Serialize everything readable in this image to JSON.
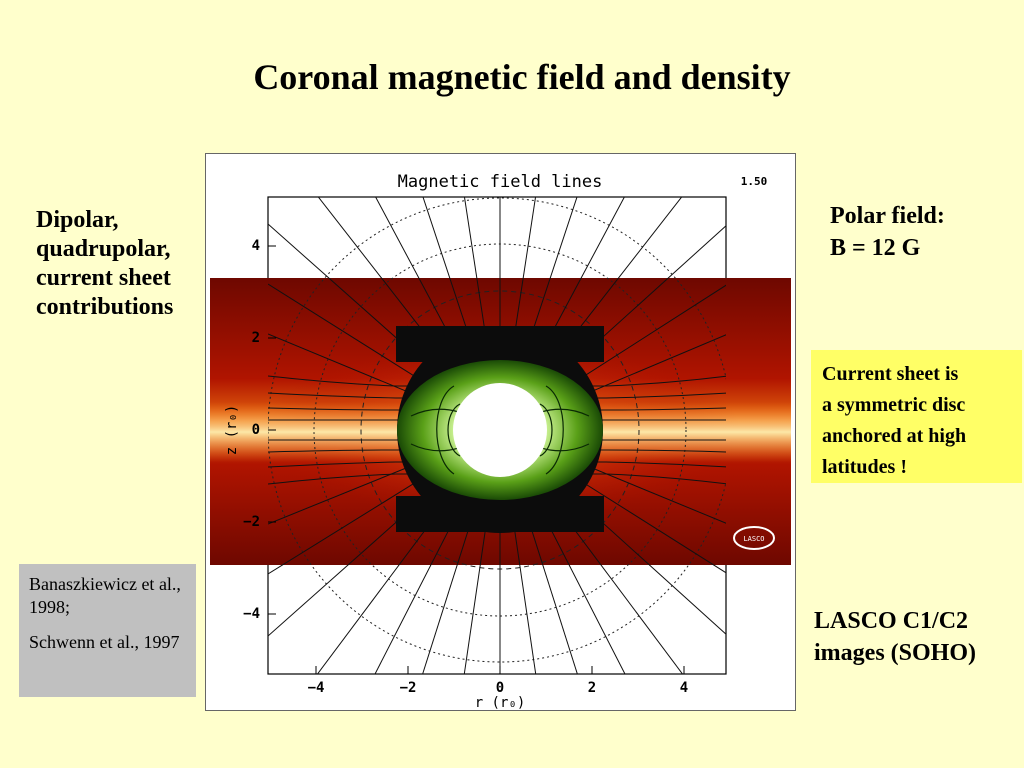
{
  "title": "Coronal magnetic field and density",
  "left_text": [
    "Dipolar,",
    "quadrupolar,",
    "current sheet",
    "contributions"
  ],
  "polar_field": [
    "Polar field:",
    "B = 12 G"
  ],
  "current_sheet_box": [
    "Current sheet is",
    "a symmetric disc",
    "anchored at high",
    "latitudes !"
  ],
  "references": [
    "Banaszkiewicz et al., 1998;",
    "Schwenn et al., 1997"
  ],
  "lasco_caption": [
    "LASCO C1/C2",
    "images (SOHO)"
  ],
  "figure": {
    "plot_title": "Magnetic field lines",
    "corner_label": "1.50",
    "xlabel": "r (r₀)",
    "ylabel": "z (r₀)",
    "xticks": [
      "−4",
      "−2",
      "0",
      "2",
      "4"
    ],
    "yticks": [
      "4",
      "2",
      "0",
      "−2",
      "−4"
    ],
    "logo_text": "LASCO"
  },
  "colors": {
    "background": "#ffffcc",
    "highlight_box": "#ffff66",
    "reference_box": "#c0c0c0",
    "corona_red": "#b01000",
    "inner_green": "#4a8a10"
  }
}
